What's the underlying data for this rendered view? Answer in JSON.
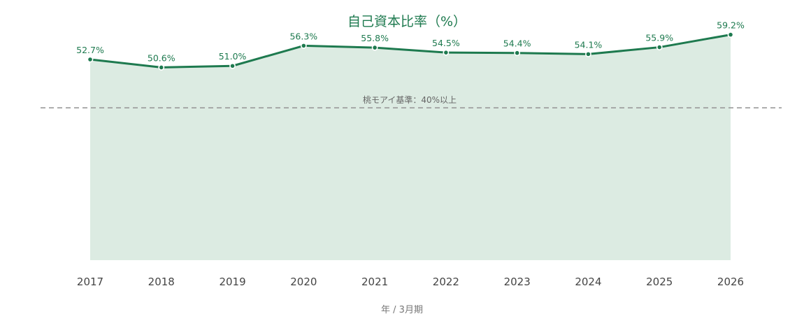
{
  "chart_data": {
    "type": "area",
    "title": "自己資本比率（%）",
    "xlabel": "年 / 3月期",
    "ylabel": "",
    "categories": [
      "2017",
      "2018",
      "2019",
      "2020",
      "2021",
      "2022",
      "2023",
      "2024",
      "2025",
      "2026"
    ],
    "series": [
      {
        "values": [
          52.7,
          50.6,
          51.0,
          56.3,
          55.8,
          54.5,
          54.4,
          54.1,
          55.9,
          59.2
        ],
        "value_labels": [
          "52.7%",
          "50.6%",
          "51.0%",
          "56.3%",
          "55.8%",
          "54.5%",
          "54.4%",
          "54.1%",
          "55.9%",
          "59.2%"
        ]
      }
    ],
    "reference_line": {
      "value": 40,
      "label": "桃モアイ基準：40%以上",
      "style": "dashed"
    },
    "ylim": [
      0,
      65
    ],
    "grid": false,
    "legend": "none",
    "colors": {
      "line": "#1e7a4f",
      "area": "#dcebe2",
      "reference": "#9a9a9a",
      "title": "#1e7a4f"
    }
  }
}
